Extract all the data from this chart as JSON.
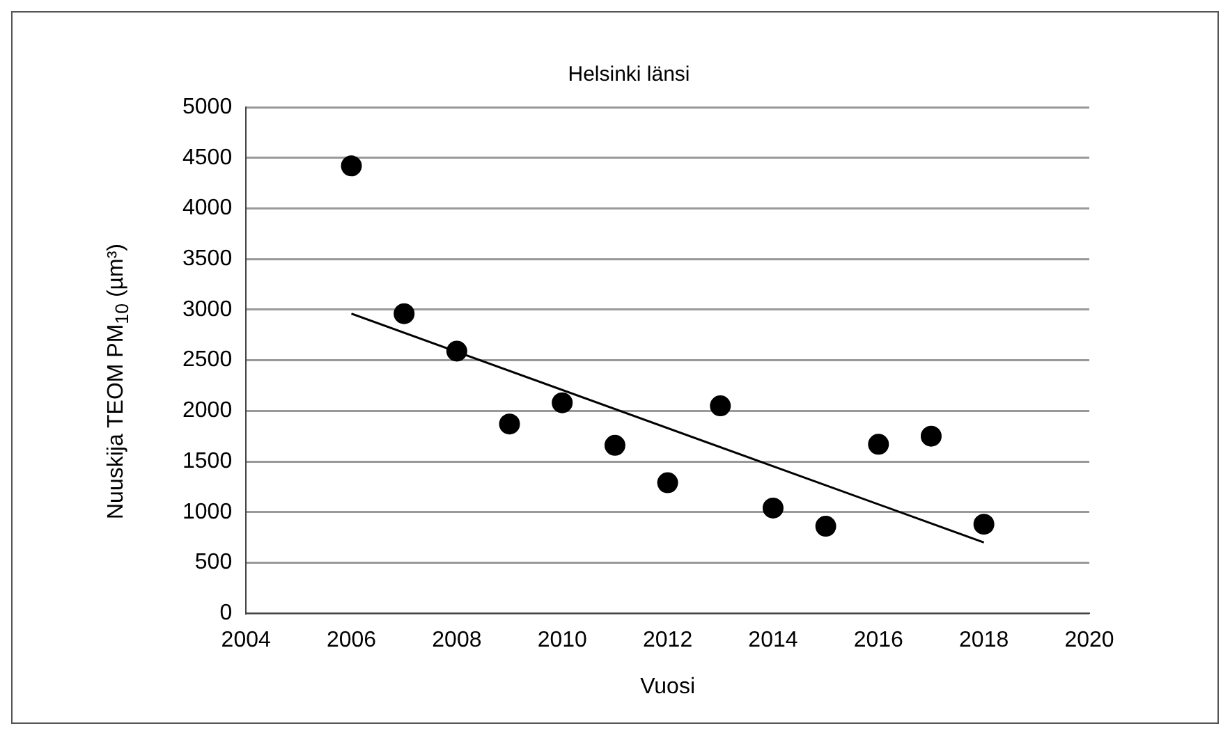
{
  "chart_data": {
    "type": "scatter",
    "title": "Helsinki länsi",
    "xlabel": "Vuosi",
    "ylabel": "Nuuskija TEOM PM$_{10}$ (µm³)",
    "xlim": [
      2004,
      2020
    ],
    "xticks": [
      2004,
      2006,
      2008,
      2010,
      2012,
      2014,
      2016,
      2018,
      2020
    ],
    "ylim": [
      0,
      5000
    ],
    "yticks": [
      0,
      500,
      1000,
      1500,
      2000,
      2500,
      3000,
      3500,
      4000,
      4500,
      5000
    ],
    "grid": "y",
    "legend": false,
    "marker": "circle",
    "x": [
      2006,
      2007,
      2008,
      2009,
      2010,
      2011,
      2012,
      2013,
      2014,
      2015,
      2016,
      2017,
      2018
    ],
    "series": [
      {
        "color": "#000000",
        "values": [
          4420,
          2960,
          2590,
          1870,
          2080,
          1660,
          1290,
          2050,
          1040,
          860,
          1670,
          1750,
          880
        ]
      },
      {
        "type": "line",
        "color": "#000000",
        "marker": "none",
        "x": [
          2006,
          2018
        ],
        "values": [
          2960,
          700
        ]
      }
    ]
  }
}
